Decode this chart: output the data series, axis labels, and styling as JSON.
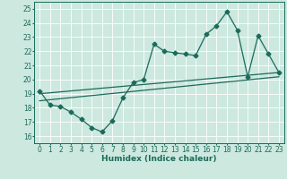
{
  "xlabel": "Humidex (Indice chaleur)",
  "ylabel": "",
  "xlim": [
    -0.5,
    23.5
  ],
  "ylim": [
    15.5,
    25.5
  ],
  "xticks": [
    0,
    1,
    2,
    3,
    4,
    5,
    6,
    7,
    8,
    9,
    10,
    11,
    12,
    13,
    14,
    15,
    16,
    17,
    18,
    19,
    20,
    21,
    22,
    23
  ],
  "yticks": [
    16,
    17,
    18,
    19,
    20,
    21,
    22,
    23,
    24,
    25
  ],
  "bg_color": "#cce8df",
  "line_color": "#1c6b5a",
  "grid_color": "#ffffff",
  "lines": [
    {
      "x": [
        0,
        1,
        2,
        3,
        4,
        5,
        6,
        7,
        8,
        9,
        10,
        11,
        12,
        13,
        14,
        15,
        16,
        17,
        18,
        19,
        20,
        21,
        22,
        23
      ],
      "y": [
        19.2,
        18.2,
        18.1,
        17.7,
        17.2,
        16.6,
        16.3,
        17.1,
        18.7,
        19.8,
        20.0,
        22.5,
        22.0,
        21.9,
        21.8,
        21.7,
        23.2,
        23.8,
        24.8,
        23.5,
        20.2,
        23.1,
        21.8,
        20.5
      ],
      "has_marker": true
    },
    {
      "x": [
        0,
        23
      ],
      "y": [
        18.5,
        20.2
      ],
      "has_marker": false
    },
    {
      "x": [
        0,
        23
      ],
      "y": [
        19.0,
        20.5
      ],
      "has_marker": false
    }
  ],
  "marker": "D",
  "markersize": 2.5,
  "linewidth": 0.9,
  "label_fontsize": 6.5,
  "tick_fontsize": 5.5
}
